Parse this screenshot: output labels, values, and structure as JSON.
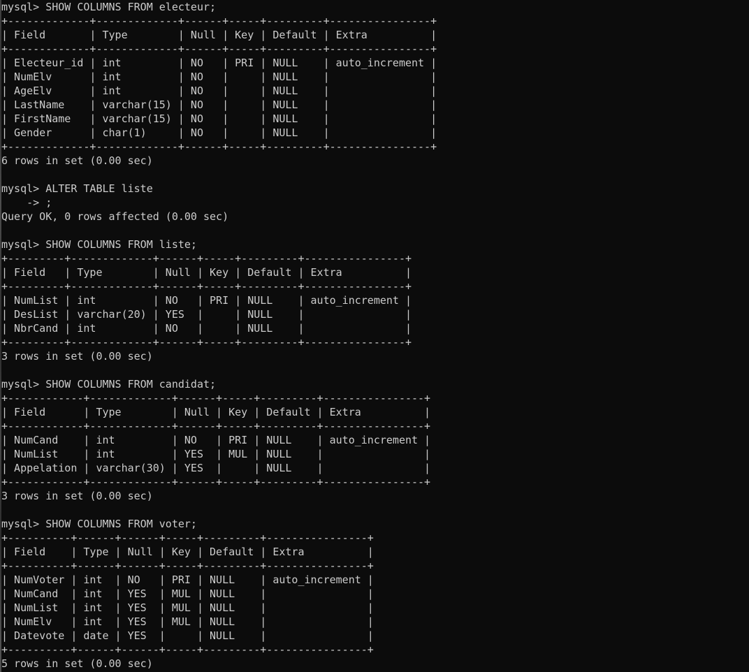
{
  "terminal": {
    "colors": {
      "background": "#0c0c0c",
      "text": "#cccccc",
      "window_edge": "#5a5a5a"
    },
    "blocks": [
      {
        "type": "command",
        "text": "mysql> SHOW COLUMNS FROM electeur;"
      },
      {
        "type": "table",
        "columns": [
          "Field",
          "Type",
          "Null",
          "Key",
          "Default",
          "Extra"
        ],
        "widths": [
          13,
          13,
          6,
          5,
          9,
          16
        ],
        "rows": [
          [
            "Electeur_id",
            "int",
            "NO",
            "PRI",
            "NULL",
            "auto_increment"
          ],
          [
            "NumElv",
            "int",
            "NO",
            "",
            "NULL",
            ""
          ],
          [
            "AgeElv",
            "int",
            "NO",
            "",
            "NULL",
            ""
          ],
          [
            "LastName",
            "varchar(15)",
            "NO",
            "",
            "NULL",
            ""
          ],
          [
            "FirstName",
            "varchar(15)",
            "NO",
            "",
            "NULL",
            ""
          ],
          [
            "Gender",
            "char(1)",
            "NO",
            "",
            "NULL",
            ""
          ]
        ]
      },
      {
        "type": "result",
        "text": "6 rows in set (0.00 sec)"
      },
      {
        "type": "blank"
      },
      {
        "type": "command",
        "text": "mysql> ALTER TABLE liste"
      },
      {
        "type": "continuation",
        "text": "    -> ;"
      },
      {
        "type": "result",
        "text": "Query OK, 0 rows affected (0.00 sec)"
      },
      {
        "type": "blank"
      },
      {
        "type": "command",
        "text": "mysql> SHOW COLUMNS FROM liste;"
      },
      {
        "type": "table",
        "columns": [
          "Field",
          "Type",
          "Null",
          "Key",
          "Default",
          "Extra"
        ],
        "widths": [
          9,
          13,
          6,
          5,
          9,
          16
        ],
        "rows": [
          [
            "NumList",
            "int",
            "NO",
            "PRI",
            "NULL",
            "auto_increment"
          ],
          [
            "DesList",
            "varchar(20)",
            "YES",
            "",
            "NULL",
            ""
          ],
          [
            "NbrCand",
            "int",
            "NO",
            "",
            "NULL",
            ""
          ]
        ]
      },
      {
        "type": "result",
        "text": "3 rows in set (0.00 sec)"
      },
      {
        "type": "blank"
      },
      {
        "type": "command",
        "text": "mysql> SHOW COLUMNS FROM candidat;"
      },
      {
        "type": "table",
        "columns": [
          "Field",
          "Type",
          "Null",
          "Key",
          "Default",
          "Extra"
        ],
        "widths": [
          12,
          13,
          6,
          5,
          9,
          16
        ],
        "rows": [
          [
            "NumCand",
            "int",
            "NO",
            "PRI",
            "NULL",
            "auto_increment"
          ],
          [
            "NumList",
            "int",
            "YES",
            "MUL",
            "NULL",
            ""
          ],
          [
            "Appelation",
            "varchar(30)",
            "YES",
            "",
            "NULL",
            ""
          ]
        ]
      },
      {
        "type": "result",
        "text": "3 rows in set (0.00 sec)"
      },
      {
        "type": "blank"
      },
      {
        "type": "command",
        "text": "mysql> SHOW COLUMNS FROM voter;"
      },
      {
        "type": "table",
        "columns": [
          "Field",
          "Type",
          "Null",
          "Key",
          "Default",
          "Extra"
        ],
        "widths": [
          10,
          6,
          6,
          5,
          9,
          16
        ],
        "rows": [
          [
            "NumVoter",
            "int",
            "NO",
            "PRI",
            "NULL",
            "auto_increment"
          ],
          [
            "NumCand",
            "int",
            "YES",
            "MUL",
            "NULL",
            ""
          ],
          [
            "NumList",
            "int",
            "YES",
            "MUL",
            "NULL",
            ""
          ],
          [
            "NumElv",
            "int",
            "YES",
            "MUL",
            "NULL",
            ""
          ],
          [
            "Datevote",
            "date",
            "YES",
            "",
            "NULL",
            ""
          ]
        ]
      },
      {
        "type": "result",
        "text": "5 rows in set (0.00 sec)"
      }
    ]
  }
}
